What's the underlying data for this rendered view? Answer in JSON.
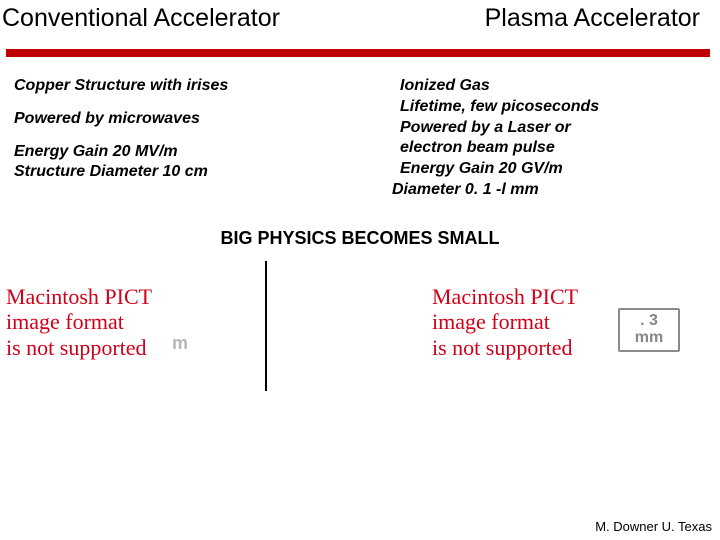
{
  "titles": {
    "left": "Conventional Accelerator",
    "right": "Plasma Accelerator"
  },
  "redbar": {
    "color": "#c00000"
  },
  "left_col": {
    "l1": "Copper  Structure with irises",
    "l2": "Powered by microwaves",
    "l3": "Energy Gain 20 MV/m",
    "l4": "Structure Diameter 10 cm"
  },
  "right_col": {
    "l1": "Ionized Gas",
    "l2": "Lifetime, few picoseconds",
    "l3": "Powered by a Laser or",
    "l4": "electron beam pulse",
    "l5": "Energy Gain 20 GV/m",
    "l6": "Diameter 0. 1 -l mm"
  },
  "tagline": "BIG PHYSICS BECOMES SMALL",
  "pict": {
    "line1": "Macintosh PICT",
    "line2": "image format",
    "line3": "is not supported"
  },
  "ghost_left": "m",
  "box_right": {
    "top": ". 3",
    "bot": "mm"
  },
  "credit": "M. Downer U. Texas",
  "colors": {
    "pict_red": "#d00018",
    "box_border": "#8b8b8b",
    "box_text": "#878787",
    "ghost": "#b6b6b6"
  }
}
